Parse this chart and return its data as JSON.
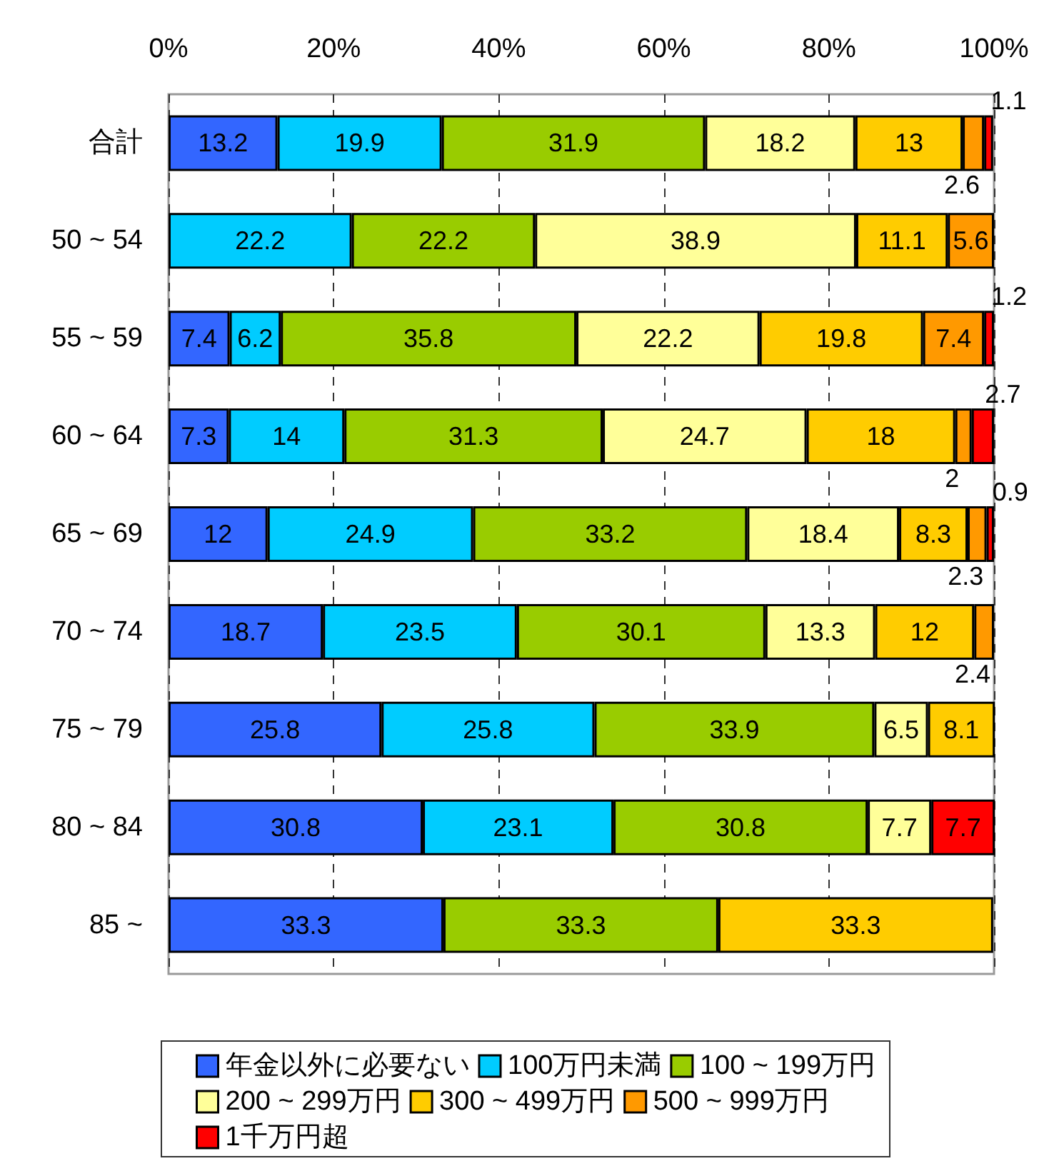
{
  "chart_data": {
    "type": "bar",
    "orientation": "horizontal",
    "stacked": true,
    "data_labels": true,
    "grid": "x",
    "legend": "bottom",
    "categories": [
      "合計",
      "50 ~ 54",
      "55 ~ 59",
      "60 ~ 64",
      "65 ~ 69",
      "70 ~ 74",
      "75 ~ 79",
      "80 ~ 84",
      "85 ~"
    ],
    "xlim": [
      0,
      100
    ],
    "xticks": [
      {
        "value": 0,
        "label": "0%"
      },
      {
        "value": 20,
        "label": "20%"
      },
      {
        "value": 40,
        "label": "40%"
      },
      {
        "value": 60,
        "label": "60%"
      },
      {
        "value": 80,
        "label": "80%"
      },
      {
        "value": 100,
        "label": "100%"
      }
    ],
    "series": [
      {
        "name": "年金以外に必要ない",
        "color": "#3366ff",
        "values": [
          13.2,
          null,
          7.4,
          7.3,
          12,
          18.7,
          25.8,
          30.8,
          33.3
        ]
      },
      {
        "name": "100万円未満",
        "color": "#00ccff",
        "values": [
          19.9,
          22.2,
          6.2,
          14,
          24.9,
          23.5,
          25.8,
          23.1,
          null
        ]
      },
      {
        "name": "100 ~ 199万円",
        "color": "#99cc00",
        "values": [
          31.9,
          22.2,
          35.8,
          31.3,
          33.2,
          30.1,
          33.9,
          30.8,
          33.3
        ]
      },
      {
        "name": "200 ~ 299万円",
        "color": "#ffff99",
        "values": [
          18.2,
          38.9,
          22.2,
          24.7,
          18.4,
          13.3,
          6.5,
          7.7,
          null
        ]
      },
      {
        "name": "300 ~ 499万円",
        "color": "#ffcc00",
        "values": [
          13,
          11.1,
          19.8,
          18,
          8.3,
          12,
          8.1,
          null,
          33.3
        ]
      },
      {
        "name": "500 ~ 999万円",
        "color": "#ff9900",
        "values": [
          2.6,
          5.6,
          7.4,
          2,
          2.3,
          2.4,
          null,
          null,
          null
        ]
      },
      {
        "name": "1千万円超",
        "color": "#ff0000",
        "values": [
          1.1,
          null,
          1.2,
          2.7,
          0.9,
          null,
          null,
          7.7,
          null
        ]
      }
    ]
  }
}
